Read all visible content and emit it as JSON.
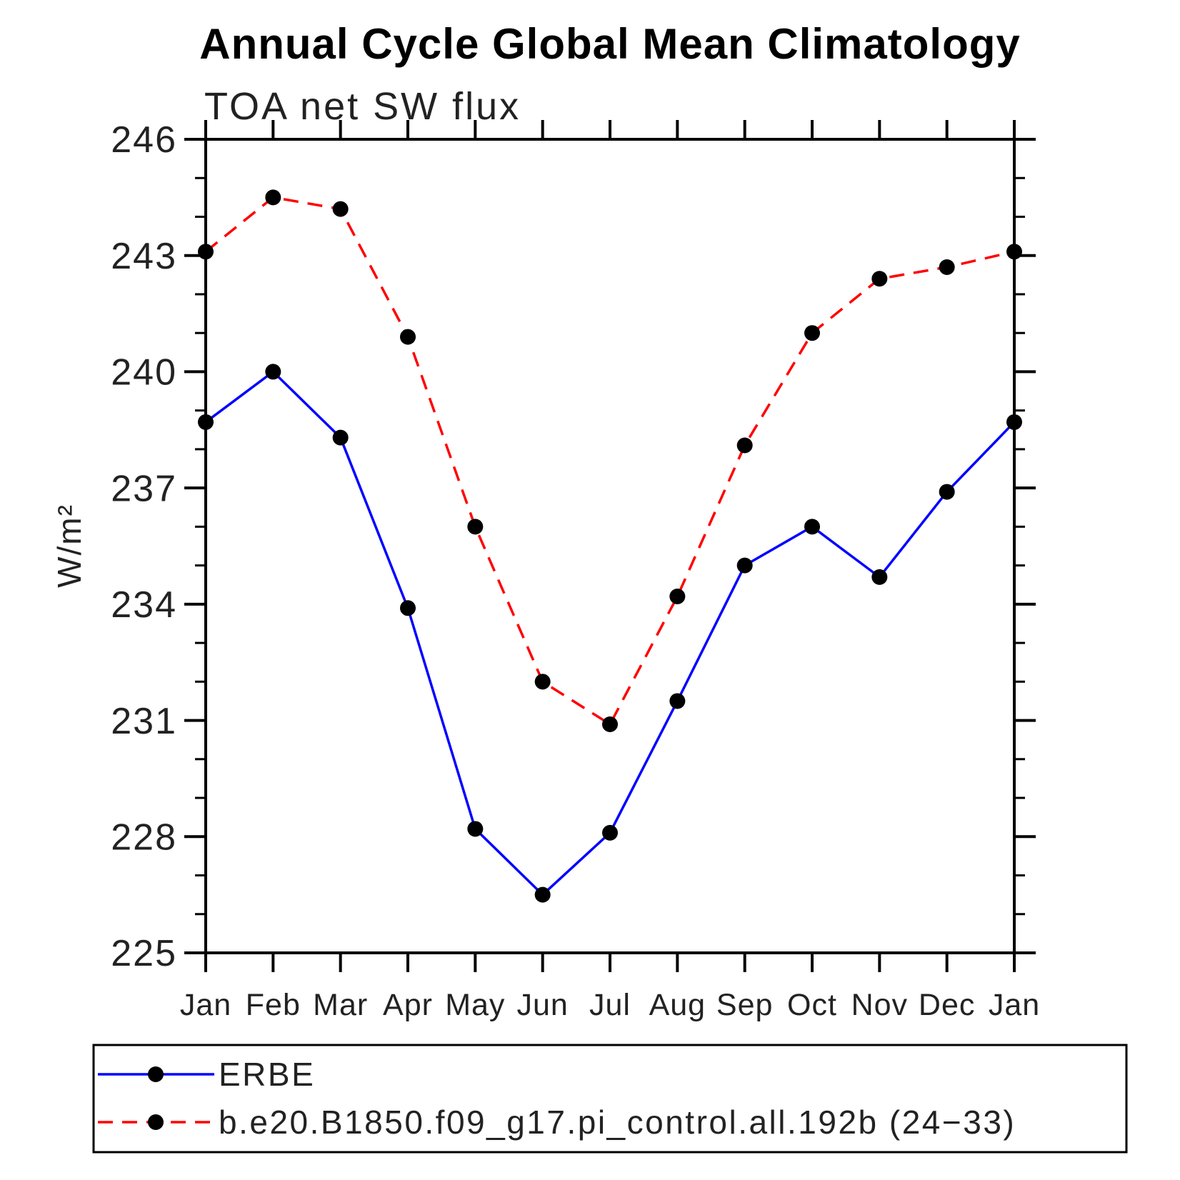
{
  "title": "Annual Cycle Global Mean Climatology",
  "chart_data": {
    "type": "line",
    "title": "Annual Cycle Global Mean Climatology",
    "subtitle": "TOA net SW flux",
    "ylabel": "W/m²",
    "xlabel": "",
    "categories": [
      "Jan",
      "Feb",
      "Mar",
      "Apr",
      "May",
      "Jun",
      "Jul",
      "Aug",
      "Sep",
      "Oct",
      "Nov",
      "Dec",
      "Jan"
    ],
    "ylim": [
      225,
      246
    ],
    "ytick_major_step": 3,
    "ytick_minor_step": 1,
    "grid": "off",
    "legend_position": "bottom-left-box",
    "axis_color": "#000000",
    "marker_color": "#000000",
    "series": [
      {
        "name": "ERBE",
        "color": "#0000ff",
        "style": "solid",
        "marker": "filled-circle",
        "values": [
          238.7,
          240.0,
          238.3,
          233.9,
          228.2,
          226.5,
          228.1,
          231.5,
          235.0,
          236.0,
          234.7,
          236.9,
          238.7
        ]
      },
      {
        "name": "b.e20.B1850.f09_g17.pi_control.all.192b (24−33)",
        "color": "#ff0000",
        "style": "dashed",
        "marker": "filled-circle",
        "values": [
          243.1,
          244.5,
          244.2,
          240.9,
          236.0,
          232.0,
          230.9,
          234.2,
          238.1,
          241.0,
          242.4,
          242.7,
          243.1
        ]
      }
    ]
  }
}
